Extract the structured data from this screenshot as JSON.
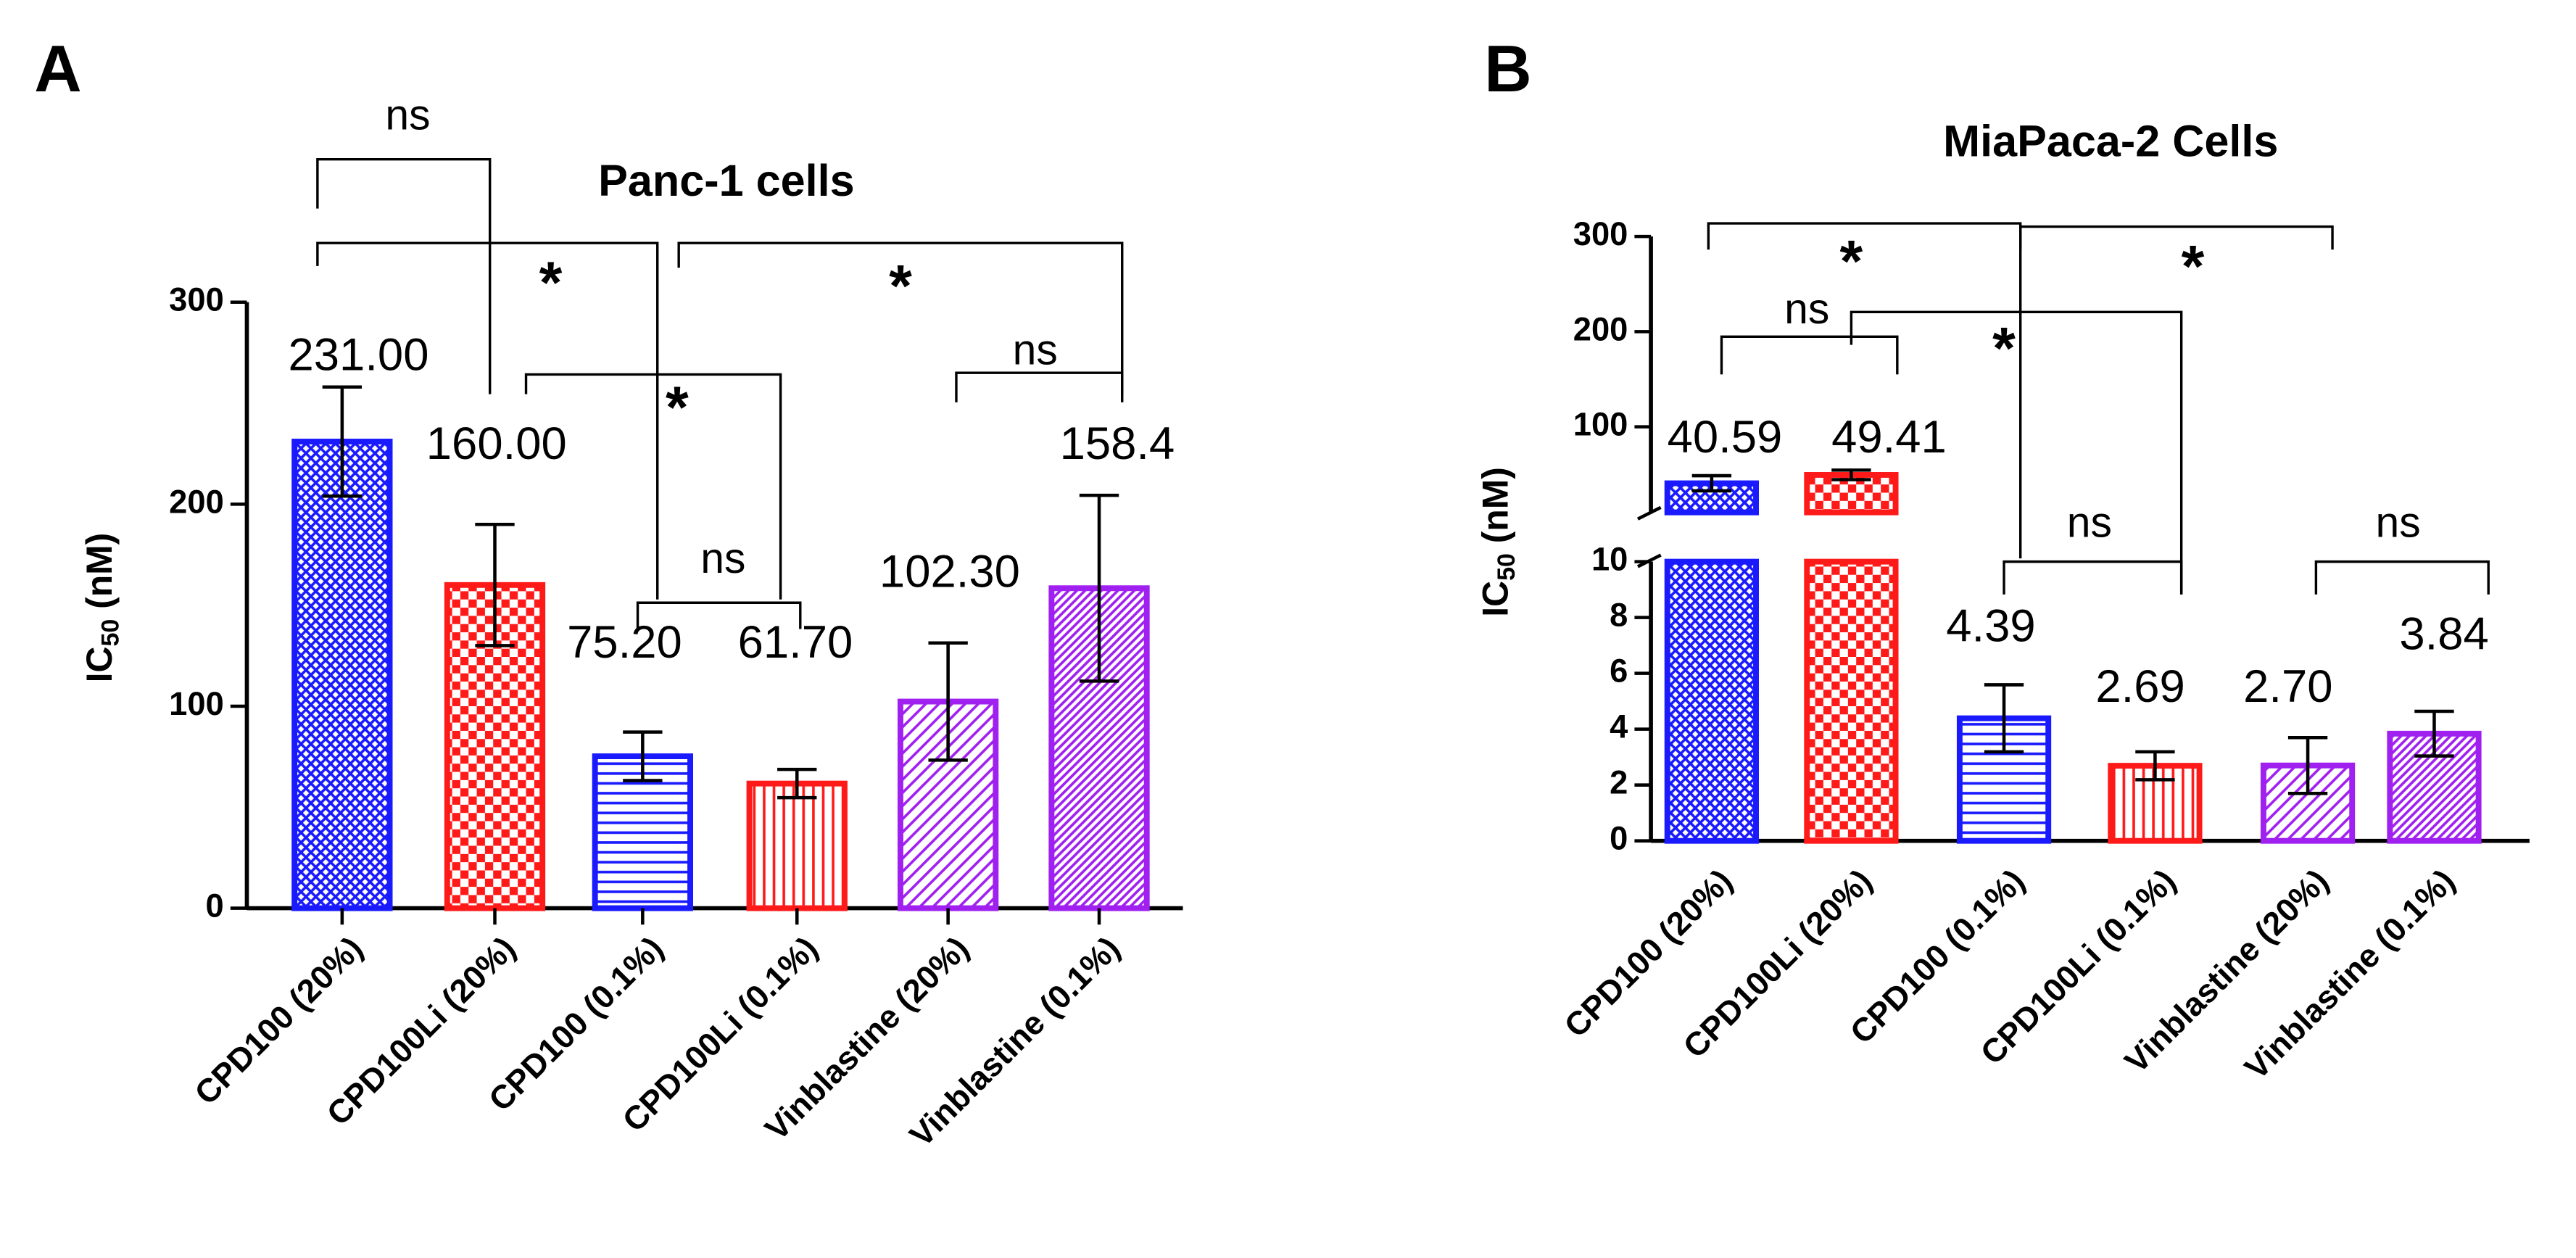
{
  "chart_data": [
    {
      "type": "bar",
      "panel": "A",
      "title": "Panc-1 cells",
      "ylabel": [
        "IC",
        "50",
        " (nM)"
      ],
      "categories": [
        "CPD100 (20%)",
        "CPD100Li (20%)",
        "CPD100 (0.1%)",
        "CPD100Li (0.1%)",
        "Vinblastine (20%)",
        "Vinblastine (0.1%)"
      ],
      "values": [
        231,
        160,
        75.2,
        61.7,
        102.3,
        158.4
      ],
      "value_labels": [
        "231.00",
        "160.00",
        "75.20",
        "61.70",
        "102.30",
        "158.4"
      ],
      "errors": [
        27,
        30,
        12,
        7,
        29,
        46
      ],
      "colors": [
        "#1a1aff",
        "#ff1a1a",
        "#1a1aff",
        "#ff1a1a",
        "#a020f0",
        "#a020f0"
      ],
      "ylim": [
        0,
        300
      ],
      "yticks": [
        0,
        100,
        200,
        300
      ],
      "annotations": [
        {
          "text": "ns"
        },
        {
          "text": "*"
        },
        {
          "text": "*"
        },
        {
          "text": "*"
        },
        {
          "text": "ns"
        },
        {
          "text": "ns"
        }
      ]
    },
    {
      "type": "broken_bar",
      "panel": "B",
      "title": "MiaPaca-2 Cells",
      "ylabel": [
        "IC",
        "50",
        " (nM)"
      ],
      "categories": [
        "CPD100 (20%)",
        "CPD100Li (20%)",
        "CPD100 (0.1%)",
        "CPD100Li (0.1%)",
        "Vinblastine (20%)",
        "Vinblastine (0.1%)"
      ],
      "values": [
        40.59,
        49.41,
        4.39,
        2.69,
        2.7,
        3.84
      ],
      "value_labels": [
        "40.59",
        "49.41",
        "4.39",
        "2.69",
        "2.70",
        "3.84"
      ],
      "errors": [
        8,
        5,
        1.2,
        0.5,
        1.0,
        0.8
      ],
      "colors": [
        "#1a1aff",
        "#ff1a1a",
        "#1a1aff",
        "#ff1a1a",
        "#a020f0",
        "#a020f0"
      ],
      "segments": [
        {
          "ylim": [
            0,
            10
          ],
          "yticks": [
            0,
            2,
            4,
            6,
            8,
            10
          ]
        },
        {
          "ylim": [
            10,
            300
          ],
          "yticks": [
            100,
            200,
            300
          ]
        }
      ],
      "annotations": [
        {
          "text": "*"
        },
        {
          "text": "*"
        },
        {
          "text": "*"
        },
        {
          "text": "ns"
        },
        {
          "text": "ns"
        },
        {
          "text": "ns"
        }
      ]
    }
  ]
}
